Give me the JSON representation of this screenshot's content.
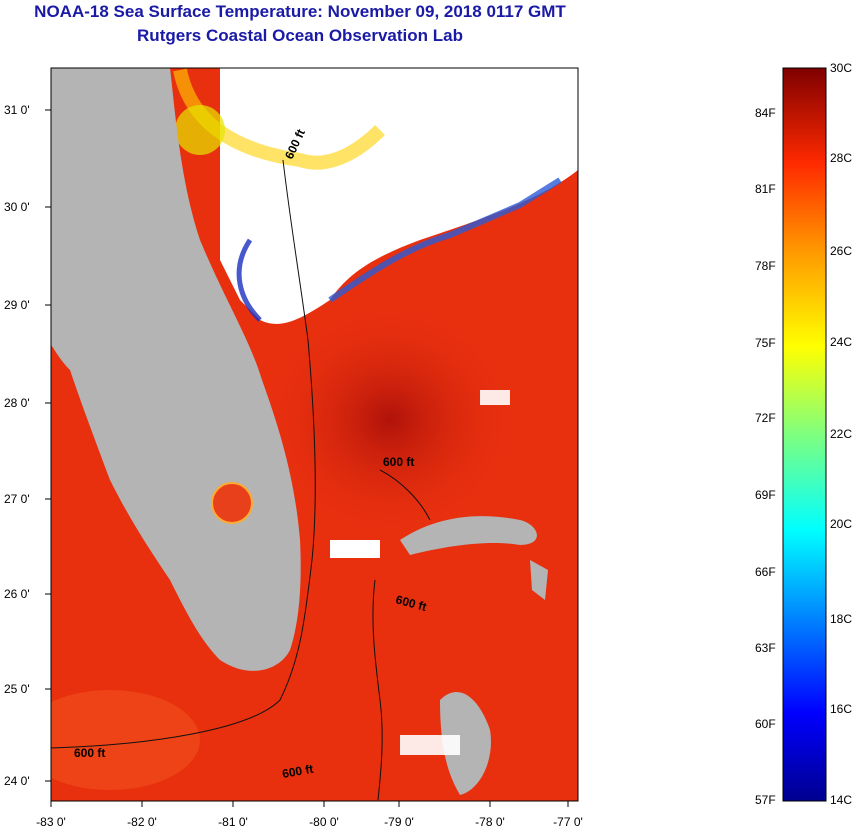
{
  "title_line1": "NOAA-18 Sea Surface Temperature:  November 09, 2018 0117 GMT",
  "title_line2": "Rutgers Coastal Ocean Observation Lab",
  "lat_labels": [
    "31 0'",
    "30 0'",
    "29 0'",
    "28 0'",
    "27 0'",
    "26 0'",
    "25 0'",
    "24 0'"
  ],
  "lon_labels": [
    "-83 0'",
    "-82 0'",
    "-81 0'",
    "-80 0'",
    "-79 0'",
    "-78 0'",
    "-77 0'"
  ],
  "contour_label": "600 ft",
  "colorbar": {
    "celsius": [
      "30C",
      "28C",
      "26C",
      "24C",
      "22C",
      "20C",
      "18C",
      "16C",
      "14C"
    ],
    "fahrenheit": [
      "84F",
      "81F",
      "78F",
      "75F",
      "72F",
      "69F",
      "66F",
      "63F",
      "60F",
      "57F"
    ]
  },
  "colors": {
    "title": "#1a1aa6",
    "land": "#b4b4b4",
    "ocean_warm": "#e8300f",
    "cloud": "#ffffff"
  }
}
